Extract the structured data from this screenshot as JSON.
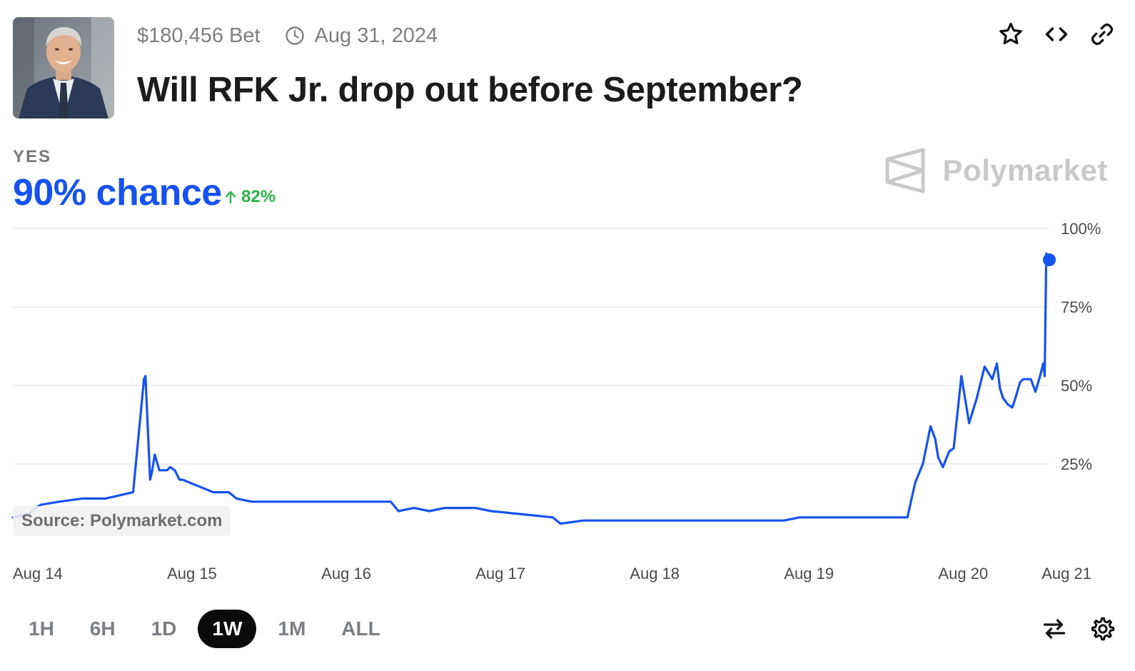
{
  "market": {
    "volume": "$180,456 Bet",
    "end_date": "Aug 31, 2024",
    "title": "Will RFK Jr. drop out before September?",
    "outcome_label": "YES",
    "chance": "90% chance",
    "change": "82%",
    "brand": "Polymarket",
    "source": "Source: Polymarket.com"
  },
  "icons": {
    "clock": "clock-icon",
    "star": "star-icon",
    "embed": "code-icon",
    "link": "link-icon",
    "swap": "swap-icon",
    "settings": "gear-icon",
    "change_arrow": "arrow-up-icon"
  },
  "colors": {
    "accent": "#1652f0",
    "positive": "#2bb34a",
    "muted": "#7d7f83"
  },
  "time_ranges": [
    {
      "label": "1H",
      "active": false
    },
    {
      "label": "6H",
      "active": false
    },
    {
      "label": "1D",
      "active": false
    },
    {
      "label": "1W",
      "active": true
    },
    {
      "label": "1M",
      "active": false
    },
    {
      "label": "ALL",
      "active": false
    }
  ],
  "chart_data": {
    "type": "line",
    "title": "",
    "xlabel": "",
    "ylabel": "",
    "ylim": [
      0,
      100
    ],
    "y_ticks": [
      25,
      50,
      75,
      100
    ],
    "y_tick_labels": [
      "25%",
      "50%",
      "75%",
      "100%"
    ],
    "x_ticks": [
      0,
      1,
      2,
      3,
      4,
      5,
      6,
      6.67
    ],
    "x_tick_labels": [
      "Aug 14",
      "Aug 15",
      "Aug 16",
      "Aug 17",
      "Aug 18",
      "Aug 19",
      "Aug 20",
      "Aug 21"
    ],
    "grid": true,
    "series": [
      {
        "name": "",
        "x": [
          0,
          0.1,
          0.15,
          0.18,
          0.3,
          0.45,
          0.6,
          0.78,
          0.85,
          0.86,
          0.89,
          0.9,
          0.92,
          0.95,
          0.97,
          1.0,
          1.02,
          1.05,
          1.08,
          1.1,
          1.2,
          1.3,
          1.4,
          1.45,
          1.55,
          1.7,
          2.0,
          2.3,
          2.45,
          2.5,
          2.6,
          2.7,
          2.8,
          2.9,
          3.0,
          3.1,
          3.3,
          3.5,
          3.55,
          3.7,
          3.9,
          4.2,
          4.5,
          4.8,
          5.0,
          5.1,
          5.3,
          5.5,
          5.7,
          5.8,
          5.85,
          5.9,
          5.95,
          5.98,
          6.0,
          6.03,
          6.07,
          6.1,
          6.15,
          6.2,
          6.25,
          6.3,
          6.35,
          6.38,
          6.4,
          6.42,
          6.45,
          6.48,
          6.5,
          6.53,
          6.55,
          6.6,
          6.63,
          6.66,
          6.68,
          6.69,
          6.7,
          6.72
        ],
        "values": [
          8,
          9,
          11,
          12,
          13,
          14,
          14,
          16,
          52,
          53,
          20,
          22,
          28,
          23,
          23,
          23,
          24,
          23,
          20,
          20,
          18,
          16,
          16,
          14,
          13,
          13,
          13,
          13,
          13,
          10,
          11,
          10,
          11,
          11,
          11,
          10,
          9,
          8,
          6,
          7,
          7,
          7,
          7,
          7,
          7,
          8,
          8,
          8,
          8,
          8,
          19,
          25,
          37,
          33,
          27,
          24,
          29,
          30,
          53,
          38,
          46,
          56,
          52,
          57,
          49,
          46,
          44,
          43,
          46,
          51,
          52,
          52,
          48,
          53,
          57,
          53,
          92,
          90
        ]
      }
    ],
    "last_value": 90
  }
}
